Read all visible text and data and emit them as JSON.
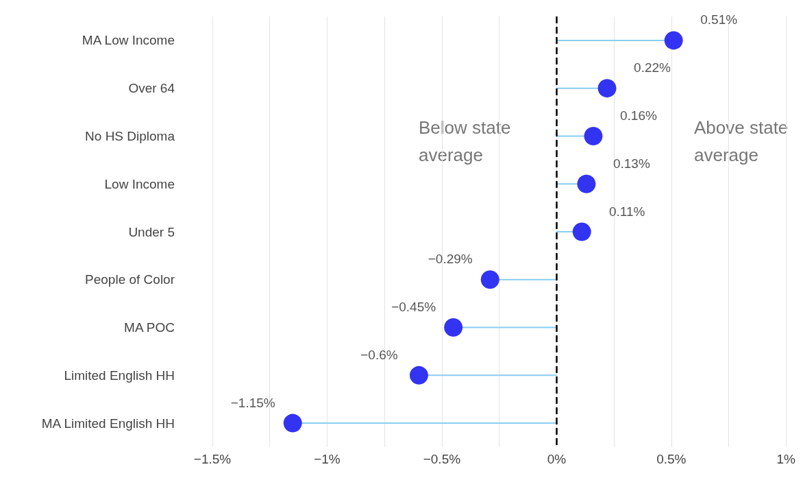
{
  "chart_data": {
    "type": "lollipop",
    "orientation": "horizontal",
    "categories": [
      "MA Low Income",
      "Over 64",
      "No HS Diploma",
      "Low Income",
      "Under 5",
      "People of Color",
      "MA POC",
      "Limited English HH",
      "MA Limited English HH"
    ],
    "series": [
      {
        "color": "#3333f2",
        "values": [
          0.51,
          0.22,
          0.16,
          0.13,
          0.11,
          -0.29,
          -0.45,
          -0.6,
          -1.15
        ],
        "value_labels": [
          "0.51%",
          "0.22%",
          "0.16%",
          "0.13%",
          "0.11%",
          "−0.29%",
          "−0.45%",
          "−0.6%",
          "−1.15%"
        ]
      }
    ],
    "xlim": [
      -1.5,
      1
    ],
    "xticks": [
      {
        "value": -1.5,
        "label": "−1.5%"
      },
      {
        "value": -1.25,
        "label": null
      },
      {
        "value": -1,
        "label": "−1%"
      },
      {
        "value": -0.75,
        "label": null
      },
      {
        "value": -0.5,
        "label": "−0.5%"
      },
      {
        "value": -0.25,
        "label": null
      },
      {
        "value": 0,
        "label": "0%"
      },
      {
        "value": 0.25,
        "label": null
      },
      {
        "value": 0.5,
        "label": "0.5%"
      },
      {
        "value": 0.75,
        "label": null
      },
      {
        "value": 1,
        "label": "1%"
      }
    ],
    "ref_lines": [
      {
        "axis": "x",
        "value": 0,
        "color": "#000000",
        "line_style": "dashed"
      }
    ],
    "annotations": [
      "Below state\naverage",
      "Above state\naverage"
    ],
    "grid": "x",
    "marker": "circle"
  }
}
